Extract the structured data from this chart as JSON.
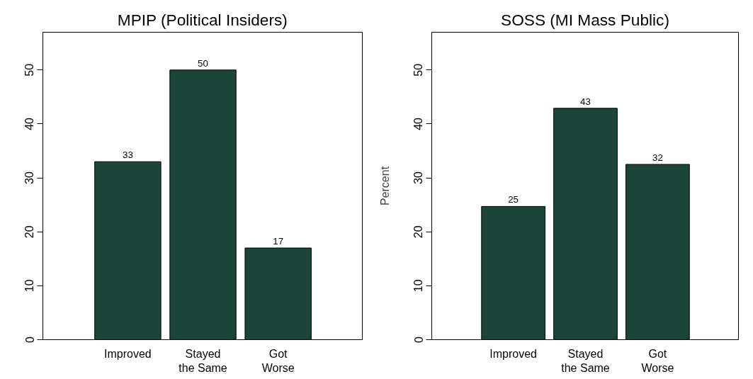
{
  "chart_data": [
    {
      "type": "bar",
      "title": "MPIP (Political Insiders)",
      "categories": [
        "Improved",
        "Stayed\nthe Same",
        "Got\nWorse"
      ],
      "values": [
        33,
        50,
        17
      ],
      "color": "#1b4539",
      "ylim": [
        0,
        57
      ],
      "yticks": [
        0,
        10,
        20,
        30,
        40,
        50
      ],
      "data_labels": true,
      "grid": false
    },
    {
      "type": "bar",
      "title": "SOSS (MI Mass Public)",
      "ylabel": "Percent",
      "categories": [
        "Improved",
        "Stayed\nthe Same",
        "Got\nWorse"
      ],
      "values": [
        24.7,
        42.9,
        32.5
      ],
      "value_labels": [
        "25",
        "43",
        "32"
      ],
      "color": "#1b4539",
      "ylim": [
        0,
        57
      ],
      "yticks": [
        0,
        10,
        20,
        30,
        40,
        50
      ],
      "grid": false
    }
  ]
}
